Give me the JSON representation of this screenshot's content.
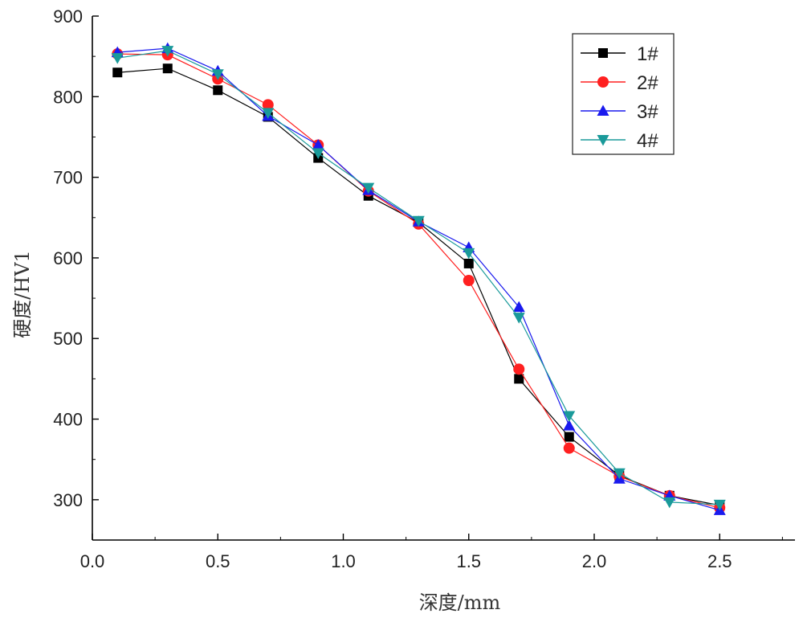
{
  "chart_data": {
    "type": "line",
    "xlabel": "深度/mm",
    "ylabel": "硬度/HV1",
    "xlim": [
      0.0,
      2.8
    ],
    "ylim": [
      250,
      900
    ],
    "x_ticks": [
      "0.0",
      "0.5",
      "1.0",
      "1.5",
      "2.0",
      "2.5"
    ],
    "y_ticks": [
      "300",
      "400",
      "500",
      "600",
      "700",
      "800",
      "900"
    ],
    "x_tick_values": [
      0.0,
      0.5,
      1.0,
      1.5,
      2.0,
      2.5
    ],
    "y_tick_values": [
      300,
      400,
      500,
      600,
      700,
      800,
      900
    ],
    "grid": false,
    "legend_position": "top-right",
    "x": [
      0.1,
      0.3,
      0.5,
      0.7,
      0.9,
      1.1,
      1.3,
      1.5,
      1.7,
      1.9,
      2.1,
      2.3,
      2.5
    ],
    "series": [
      {
        "name": "1#",
        "color": "#000000",
        "marker": "square",
        "values": [
          830,
          835,
          808,
          775,
          724,
          677,
          644,
          593,
          450,
          378,
          330,
          305,
          293
        ]
      },
      {
        "name": "2#",
        "color": "#ff2020",
        "marker": "circle",
        "values": [
          853,
          852,
          822,
          790,
          740,
          683,
          642,
          572,
          462,
          364,
          329,
          305,
          290
        ]
      },
      {
        "name": "3#",
        "color": "#1a1aee",
        "marker": "triangle-up",
        "values": [
          855,
          860,
          832,
          776,
          740,
          684,
          645,
          613,
          539,
          392,
          326,
          305,
          287
        ]
      },
      {
        "name": "4#",
        "color": "#1a9a9a",
        "marker": "triangle-down",
        "values": [
          848,
          857,
          828,
          780,
          730,
          687,
          646,
          606,
          526,
          404,
          333,
          297,
          294
        ]
      }
    ]
  }
}
